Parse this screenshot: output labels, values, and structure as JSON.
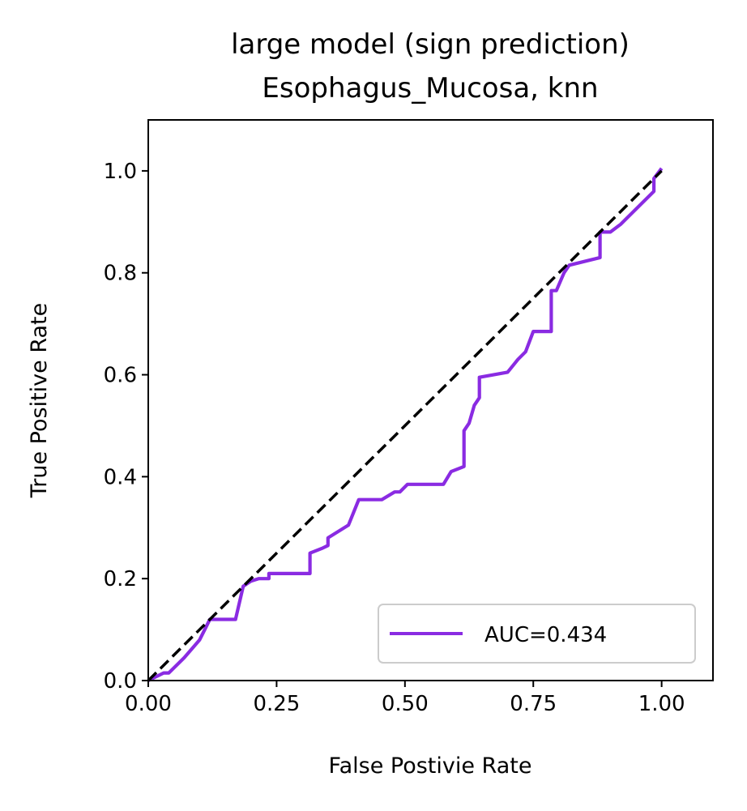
{
  "chart_data": {
    "type": "line",
    "title_line1": "large model (sign prediction)",
    "title_line2": "Esophagus_Mucosa, knn",
    "xlabel": "False Postivie Rate",
    "ylabel": "True Positive Rate",
    "xlim": [
      0,
      1.1
    ],
    "ylim": [
      0,
      1.1
    ],
    "xticks": [
      0.0,
      0.25,
      0.5,
      0.75,
      1.0
    ],
    "xtick_labels": [
      "0.00",
      "0.25",
      "0.50",
      "0.75",
      "1.00"
    ],
    "yticks": [
      0.0,
      0.2,
      0.4,
      0.6,
      0.8,
      1.0
    ],
    "ytick_labels": [
      "0.0",
      "0.2",
      "0.4",
      "0.6",
      "0.8",
      "1.0"
    ],
    "grid": false,
    "legend_position": "lower-right",
    "series": [
      {
        "name": "AUC=0.434",
        "color": "#8a2be2",
        "style": "solid",
        "x": [
          0.0,
          0.03,
          0.04,
          0.07,
          0.1,
          0.12,
          0.17,
          0.185,
          0.2,
          0.215,
          0.235,
          0.235,
          0.315,
          0.315,
          0.34,
          0.35,
          0.35,
          0.39,
          0.41,
          0.455,
          0.48,
          0.49,
          0.505,
          0.575,
          0.59,
          0.615,
          0.615,
          0.625,
          0.635,
          0.645,
          0.645,
          0.7,
          0.72,
          0.735,
          0.75,
          0.785,
          0.785,
          0.795,
          0.81,
          0.82,
          0.88,
          0.88,
          0.9,
          0.92,
          0.985,
          0.985,
          1.0
        ],
        "y": [
          0.0,
          0.015,
          0.015,
          0.045,
          0.08,
          0.12,
          0.12,
          0.185,
          0.195,
          0.2,
          0.2,
          0.21,
          0.21,
          0.25,
          0.26,
          0.265,
          0.28,
          0.305,
          0.355,
          0.355,
          0.37,
          0.37,
          0.385,
          0.385,
          0.41,
          0.42,
          0.49,
          0.505,
          0.54,
          0.555,
          0.595,
          0.605,
          0.63,
          0.645,
          0.685,
          0.685,
          0.765,
          0.765,
          0.8,
          0.815,
          0.83,
          0.88,
          0.88,
          0.895,
          0.96,
          0.985,
          1.005
        ]
      },
      {
        "name": "",
        "color": "#000000",
        "style": "dashed",
        "x": [
          0.0,
          1.0
        ],
        "y": [
          0.0,
          1.0
        ]
      }
    ]
  }
}
